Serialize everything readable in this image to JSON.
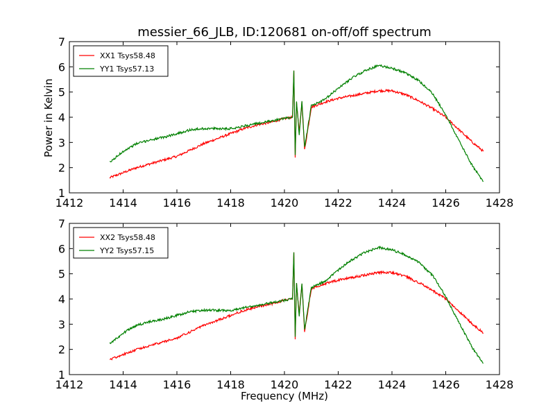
{
  "figure": {
    "title": "messier_66_JLB, ID:120681 on-off/off spectrum",
    "xlabel": "Frequency (MHz)",
    "ylabel": "Power in Kelvin"
  },
  "colors": {
    "xx": "#ff0000",
    "yy": "#008000"
  },
  "chart_data": [
    {
      "type": "line",
      "xlim": [
        1412,
        1428
      ],
      "ylim": [
        1,
        7
      ],
      "xticks": [
        1412,
        1414,
        1416,
        1418,
        1420,
        1422,
        1424,
        1426,
        1428
      ],
      "yticks": [
        1,
        2,
        3,
        4,
        5,
        6,
        7
      ],
      "grid": false,
      "legend_position": "top-left",
      "series": [
        {
          "name": "XX1 Tsys58.48",
          "x": [
            1413.5,
            1414.0,
            1414.5,
            1415.0,
            1415.5,
            1416.0,
            1416.5,
            1417.0,
            1417.5,
            1418.0,
            1418.5,
            1419.0,
            1419.5,
            1420.0,
            1420.3,
            1420.35,
            1420.4,
            1420.45,
            1420.55,
            1420.65,
            1420.75,
            1421.0,
            1421.5,
            1422.0,
            1422.5,
            1423.0,
            1423.5,
            1424.0,
            1424.5,
            1425.0,
            1425.5,
            1426.0,
            1426.5,
            1427.0,
            1427.4
          ],
          "y": [
            1.6,
            1.8,
            2.0,
            2.15,
            2.3,
            2.45,
            2.7,
            2.95,
            3.15,
            3.35,
            3.55,
            3.7,
            3.8,
            3.95,
            4.0,
            5.85,
            2.4,
            4.6,
            3.4,
            4.6,
            2.7,
            4.4,
            4.6,
            4.75,
            4.85,
            4.95,
            5.05,
            5.05,
            4.9,
            4.65,
            4.35,
            4.0,
            3.5,
            3.0,
            2.65
          ]
        },
        {
          "name": "YY1 Tsys57.13",
          "x": [
            1413.5,
            1414.0,
            1414.5,
            1415.0,
            1415.5,
            1416.0,
            1416.5,
            1417.0,
            1417.5,
            1418.0,
            1418.5,
            1419.0,
            1419.5,
            1420.0,
            1420.3,
            1420.35,
            1420.4,
            1420.45,
            1420.55,
            1420.65,
            1420.75,
            1421.0,
            1421.5,
            1422.0,
            1422.5,
            1423.0,
            1423.5,
            1424.0,
            1424.5,
            1425.0,
            1425.5,
            1426.0,
            1426.5,
            1427.0,
            1427.4
          ],
          "y": [
            2.2,
            2.65,
            2.95,
            3.1,
            3.2,
            3.35,
            3.5,
            3.55,
            3.55,
            3.55,
            3.65,
            3.75,
            3.85,
            3.95,
            4.0,
            5.85,
            2.5,
            4.65,
            3.3,
            4.65,
            2.8,
            4.45,
            4.7,
            5.15,
            5.55,
            5.85,
            6.05,
            5.95,
            5.75,
            5.45,
            4.95,
            4.1,
            3.05,
            2.05,
            1.45
          ]
        }
      ]
    },
    {
      "type": "line",
      "xlim": [
        1412,
        1428
      ],
      "ylim": [
        1,
        7
      ],
      "xticks": [
        1412,
        1414,
        1416,
        1418,
        1420,
        1422,
        1424,
        1426,
        1428
      ],
      "yticks": [
        1,
        2,
        3,
        4,
        5,
        6,
        7
      ],
      "grid": false,
      "legend_position": "top-left",
      "series": [
        {
          "name": "XX2 Tsys58.48",
          "x": [
            1413.5,
            1414.0,
            1414.5,
            1415.0,
            1415.5,
            1416.0,
            1416.5,
            1417.0,
            1417.5,
            1418.0,
            1418.5,
            1419.0,
            1419.5,
            1420.0,
            1420.3,
            1420.35,
            1420.4,
            1420.45,
            1420.55,
            1420.65,
            1420.75,
            1421.0,
            1421.5,
            1422.0,
            1422.5,
            1423.0,
            1423.5,
            1424.0,
            1424.5,
            1425.0,
            1425.5,
            1426.0,
            1426.5,
            1427.0,
            1427.4
          ],
          "y": [
            1.6,
            1.8,
            2.0,
            2.15,
            2.3,
            2.45,
            2.7,
            2.95,
            3.15,
            3.35,
            3.55,
            3.7,
            3.8,
            3.95,
            4.0,
            5.85,
            2.4,
            4.6,
            3.4,
            4.6,
            2.7,
            4.4,
            4.6,
            4.75,
            4.85,
            4.95,
            5.05,
            5.05,
            4.9,
            4.65,
            4.35,
            4.0,
            3.5,
            3.0,
            2.65
          ]
        },
        {
          "name": "YY2 Tsys57.15",
          "x": [
            1413.5,
            1414.0,
            1414.5,
            1415.0,
            1415.5,
            1416.0,
            1416.5,
            1417.0,
            1417.5,
            1418.0,
            1418.5,
            1419.0,
            1419.5,
            1420.0,
            1420.3,
            1420.35,
            1420.4,
            1420.45,
            1420.55,
            1420.65,
            1420.75,
            1421.0,
            1421.5,
            1422.0,
            1422.5,
            1423.0,
            1423.5,
            1424.0,
            1424.5,
            1425.0,
            1425.5,
            1426.0,
            1426.5,
            1427.0,
            1427.4
          ],
          "y": [
            2.2,
            2.65,
            2.95,
            3.1,
            3.2,
            3.35,
            3.5,
            3.55,
            3.55,
            3.55,
            3.65,
            3.75,
            3.85,
            3.95,
            4.0,
            5.85,
            2.5,
            4.65,
            3.3,
            4.65,
            2.8,
            4.45,
            4.7,
            5.15,
            5.55,
            5.85,
            6.05,
            5.95,
            5.75,
            5.45,
            4.95,
            4.1,
            3.05,
            2.05,
            1.45
          ]
        }
      ]
    }
  ]
}
